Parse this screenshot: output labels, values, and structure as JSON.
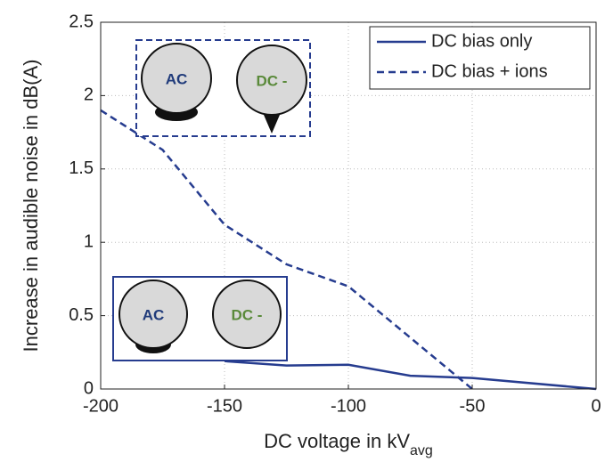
{
  "chart_data": {
    "type": "line",
    "xlabel": "DC voltage in kV",
    "xlabel_subscript": "avg",
    "ylabel": "Increase in audible noise in dB(A)",
    "xlim": [
      -200,
      0
    ],
    "xticks": [
      -200,
      -150,
      -100,
      -50,
      0
    ],
    "ylim": [
      0,
      2.5
    ],
    "yticks": [
      0,
      0.5,
      1,
      1.5,
      2,
      2.5
    ],
    "grid": true,
    "legend": "upper right",
    "series": [
      {
        "name": "DC bias only",
        "color": "#263c8f",
        "style": "solid",
        "x": [
          -150,
          -125,
          -100,
          -75,
          -50,
          0
        ],
        "values": [
          0.19,
          0.16,
          0.165,
          0.09,
          0.075,
          0
        ]
      },
      {
        "name": "DC bias + ions",
        "color": "#263c8f",
        "style": "dashed",
        "x": [
          -200,
          -175,
          -150,
          -125,
          -100,
          -50
        ],
        "values": [
          1.9,
          1.63,
          1.12,
          0.85,
          0.7,
          0
        ]
      }
    ]
  },
  "annotations": [
    "AC",
    "DC -",
    "AC",
    "DC -"
  ]
}
